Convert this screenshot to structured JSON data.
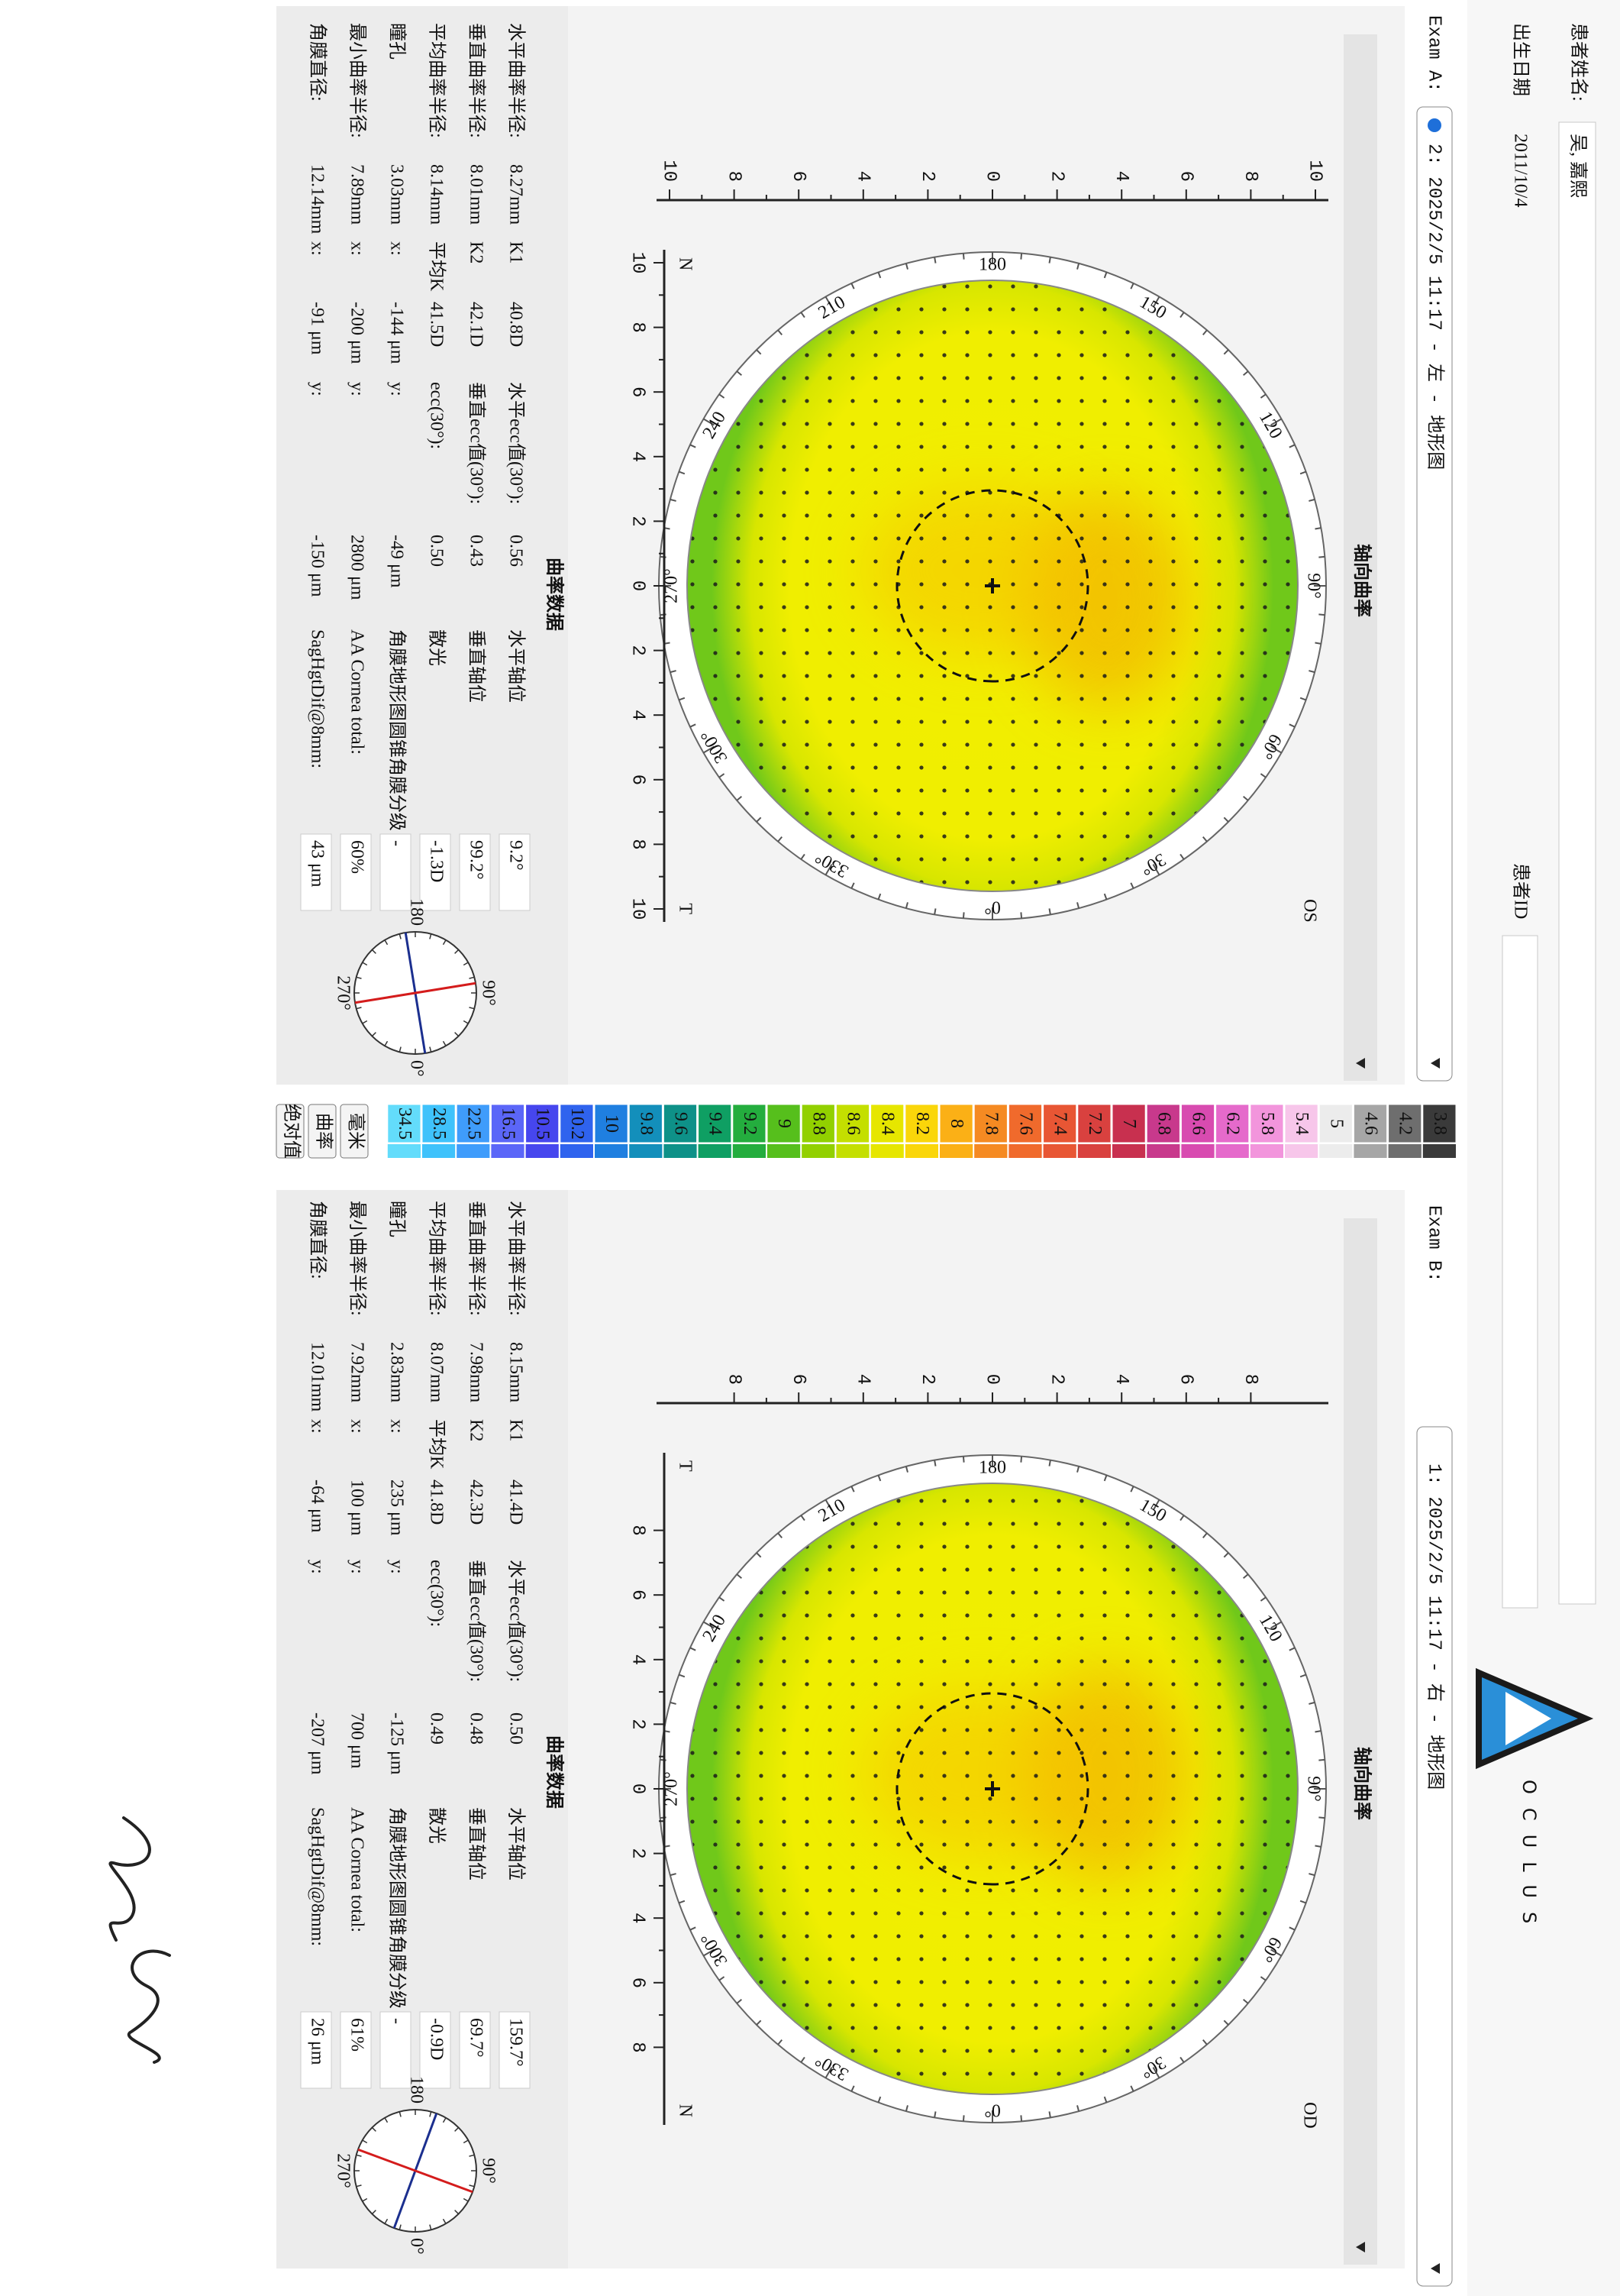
{
  "header": {
    "name_label": "患者姓名:",
    "name": "吴, 嘉熙",
    "dob_label": "出生日期",
    "dob": "2011/10/4",
    "id_label": "患者ID",
    "brand": "OCULUS"
  },
  "map_angles": [
    "0°",
    "30°",
    "60°",
    "90°",
    "120",
    "150",
    "180",
    "210",
    "240",
    "270°",
    "300°",
    "330°"
  ],
  "compass_labels": [
    "0°",
    "90°",
    "180",
    "270°"
  ],
  "exams": [
    {
      "label": "Exam A:",
      "selection": "2: 2025/2/5 11:17 - 左 - 地形图",
      "map_title": "轴向曲率",
      "eye": "OS",
      "left_marker": "N",
      "right_marker": "T",
      "vticks": [
        "10",
        "8",
        "6",
        "4",
        "2",
        "0",
        "2",
        "4",
        "6",
        "8",
        "10"
      ],
      "hticks": [
        "10",
        "8",
        "6",
        "4",
        "2",
        "0",
        "2",
        "4",
        "6",
        "8",
        "10"
      ],
      "table_title": "曲率数据",
      "rows": [
        [
          "水平曲率半径:",
          "8.27mm",
          "K1",
          "40.8D",
          "水平ecc值(30°):",
          "0.56",
          "水平轴位",
          "9.2°"
        ],
        [
          "垂直曲率半径:",
          "8.01mm",
          "K2",
          "42.1D",
          "垂直ecc值(30°):",
          "0.43",
          "垂直轴位",
          "99.2°"
        ],
        [
          "平均曲率半径:",
          "8.14mm",
          "平均K",
          "41.5D",
          "ecc(30°):",
          "0.50",
          "散光",
          "-1.3D"
        ],
        [
          "瞳孔",
          "3.03mm",
          "x:",
          "-144 μm",
          "y:",
          "-49 μm",
          "角膜地形图圆锥角膜分级",
          "-"
        ],
        [
          "最小曲率半径:",
          "7.89mm",
          "x:",
          "-200 μm",
          "y:",
          "2800 μm",
          "AA Cornea total:",
          "60%"
        ],
        [
          "角膜直径:",
          "12.14mm",
          "x:",
          "-91 μm",
          "y:",
          "-150 μm",
          "SagHgtDif@8mm:",
          "43 μm"
        ]
      ]
    },
    {
      "label": "Exam B:",
      "selection": "1: 2025/2/5 11:17 - 右 - 地形图",
      "map_title": "轴向曲率",
      "eye": "OD",
      "left_marker": "T",
      "right_marker": "N",
      "vticks": [
        "8",
        "6",
        "4",
        "2",
        "0",
        "2",
        "4",
        "6",
        "8"
      ],
      "hticks": [
        "8",
        "6",
        "4",
        "2",
        "0",
        "2",
        "4",
        "6",
        "8"
      ],
      "table_title": "曲率数据",
      "rows": [
        [
          "水平曲率半径:",
          "8.15mm",
          "K1",
          "41.4D",
          "水平ecc值(30°):",
          "0.50",
          "水平轴位",
          "159.7°"
        ],
        [
          "垂直曲率半径:",
          "7.98mm",
          "K2",
          "42.3D",
          "垂直ecc值(30°):",
          "0.48",
          "垂直轴位",
          "69.7°"
        ],
        [
          "平均曲率半径:",
          "8.07mm",
          "平均K",
          "41.8D",
          "ecc(30°):",
          "0.49",
          "散光",
          "-0.9D"
        ],
        [
          "瞳孔",
          "2.83mm",
          "x:",
          "235 μm",
          "y:",
          "-125 μm",
          "角膜地形图圆锥角膜分级",
          "-"
        ],
        [
          "最小曲率半径:",
          "7.92mm",
          "x:",
          "100 μm",
          "y:",
          "700 μm",
          "AA Cornea total:",
          "61%"
        ],
        [
          "角膜直径:",
          "12.01mm",
          "x:",
          "-64 μm",
          "y:",
          "-207 μm",
          "SagHgtDif@8mm:",
          "26 μm"
        ]
      ]
    }
  ],
  "scale": {
    "values": [
      3.8,
      4.2,
      4.6,
      5,
      5.4,
      5.8,
      6.2,
      6.6,
      6.8,
      7,
      7.2,
      7.4,
      7.6,
      7.8,
      8,
      8.2,
      8.4,
      8.6,
      8.8,
      9,
      9.2,
      9.4,
      9.6,
      9.8,
      10,
      10.2,
      10.5,
      16.5,
      22.5,
      28.5,
      34.5
    ],
    "colors": [
      "#3a3a3a",
      "#6e6e6e",
      "#a6a6a6",
      "#ececec",
      "#f7c6ea",
      "#f295dc",
      "#e56acb",
      "#d84bb0",
      "#c8398c",
      "#c8304f",
      "#d9413f",
      "#e85634",
      "#f06a2c",
      "#f58a22",
      "#fbb016",
      "#fad60a",
      "#e6e600",
      "#c4df00",
      "#92d000",
      "#56bf1c",
      "#24ad3e",
      "#0f9f63",
      "#0e9188",
      "#138fbb",
      "#1f7fe0",
      "#2f63ee",
      "#4646ee",
      "#5b66f8",
      "#3f9cfb",
      "#3fc2fb",
      "#63dcfb"
    ]
  },
  "buttons": [
    "毫米",
    "曲率",
    "绝对值"
  ]
}
